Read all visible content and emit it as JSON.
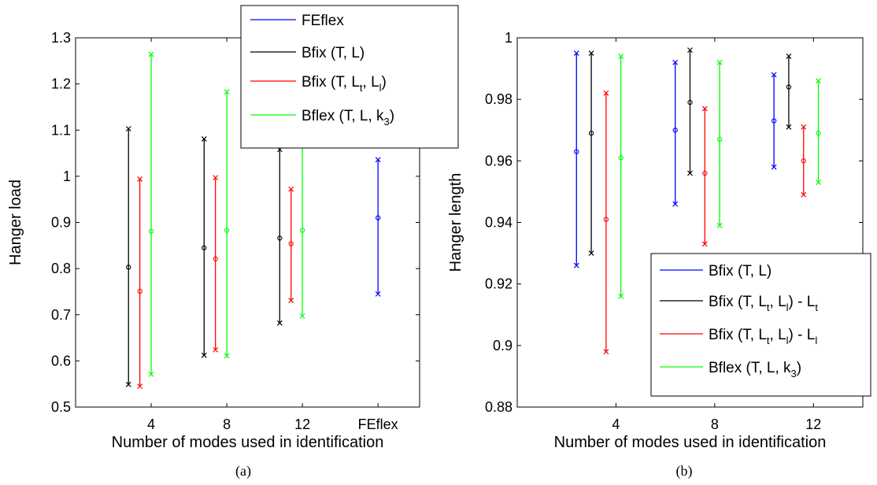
{
  "chart_data": [
    {
      "type": "scatter",
      "panel": "a",
      "caption": "(a)",
      "xlabel": "Number of modes used in identification",
      "ylabel": "Hanger load",
      "ylim": [
        0.5,
        1.3
      ],
      "y_ticks": [
        0.5,
        0.6,
        0.7,
        0.8,
        0.9,
        1,
        1.1,
        1.2,
        1.3
      ],
      "y_tick_labels": [
        "0.5",
        "0.6",
        "0.7",
        "0.8",
        "0.9",
        "1",
        "1.1",
        "1.2",
        "1.3"
      ],
      "categories": [
        "4",
        "8",
        "12",
        "FEflex"
      ],
      "grid": false,
      "legend_position": "top-right",
      "legend": [
        {
          "label": "FEflex",
          "color": "#0000ff"
        },
        {
          "label": "Bfix (T,  L)",
          "color": "#000000"
        },
        {
          "label": "Bfix (T,  L",
          "sub": "t",
          "label2": ",  L",
          "sub2": "l",
          "label3": ")",
          "color": "#ff0000"
        },
        {
          "label": "Bflex (T,  L,   k",
          "sub": "3",
          "label2": ")",
          "color": "#00ff00"
        }
      ],
      "series": [
        {
          "name": "FEflex",
          "color": "#0000ff",
          "x": [
            4.0
          ],
          "center": [
            0.91
          ],
          "low": [
            0.745
          ],
          "high": [
            1.036
          ]
        },
        {
          "name": "Bfix (T,  L)",
          "color": "#000000",
          "x": [
            0.7,
            1.7,
            2.7
          ],
          "center": [
            0.803,
            0.845,
            0.866
          ],
          "low": [
            0.549,
            0.612,
            0.682
          ],
          "high": [
            1.103,
            1.081,
            1.058
          ]
        },
        {
          "name": "Bfix (T,  Lt,  Ll)",
          "color": "#ff0000",
          "x": [
            0.85,
            1.85,
            2.85
          ],
          "center": [
            0.751,
            0.821,
            0.854
          ],
          "low": [
            0.545,
            0.624,
            0.731
          ],
          "high": [
            0.994,
            0.997,
            0.972
          ]
        },
        {
          "name": "Bflex (T,  L,   k3)",
          "color": "#00ff00",
          "x": [
            1.0,
            2.0,
            3.0
          ],
          "center": [
            0.881,
            0.883,
            0.883
          ],
          "low": [
            0.571,
            0.611,
            0.697
          ],
          "high": [
            1.264,
            1.183,
            1.077
          ]
        }
      ]
    },
    {
      "type": "scatter",
      "panel": "b",
      "caption": "(b)",
      "xlabel": "Number of modes used in identification",
      "ylabel": "Hanger length",
      "ylim": [
        0.88,
        1.0
      ],
      "y_ticks": [
        0.88,
        0.9,
        0.92,
        0.94,
        0.96,
        0.98,
        1.0
      ],
      "y_tick_labels": [
        "0.88",
        "0.9",
        "0.92",
        "0.94",
        "0.96",
        "0.98",
        "1"
      ],
      "categories": [
        "4",
        "8",
        "12"
      ],
      "grid": false,
      "legend_position": "bottom-right",
      "legend": [
        {
          "label": "Bfix (T,  L)",
          "color": "#0000ff"
        },
        {
          "label": "Bfix (T,  L",
          "sub": "t",
          "label2": ",  L",
          "sub2": "l",
          "label3": ") - L",
          "sub3": "t",
          "color": "#000000"
        },
        {
          "label": "Bfix (T,  L",
          "sub": "t",
          "label2": ",  L",
          "sub2": "l",
          "label3": ") - L",
          "sub3": "l",
          "color": "#ff0000"
        },
        {
          "label": "Bflex (T,  L,   k",
          "sub": "3",
          "label2": ")",
          "color": "#00ff00"
        }
      ],
      "series": [
        {
          "name": "Bfix (T,  L)",
          "color": "#0000ff",
          "x": [
            0.6,
            1.6,
            2.6
          ],
          "center": [
            0.963,
            0.97,
            0.973
          ],
          "low": [
            0.926,
            0.946,
            0.958
          ],
          "high": [
            0.995,
            0.992,
            0.988
          ]
        },
        {
          "name": "Bfix (T,  Lt,  Ll) - Lt",
          "color": "#000000",
          "x": [
            0.75,
            1.75,
            2.75
          ],
          "center": [
            0.969,
            0.979,
            0.984
          ],
          "low": [
            0.93,
            0.956,
            0.971
          ],
          "high": [
            0.995,
            0.996,
            0.994
          ]
        },
        {
          "name": "Bfix (T,  Lt,  Ll) - Ll",
          "color": "#ff0000",
          "x": [
            0.9,
            1.9,
            2.9
          ],
          "center": [
            0.941,
            0.956,
            0.96
          ],
          "low": [
            0.898,
            0.933,
            0.949
          ],
          "high": [
            0.982,
            0.977,
            0.971
          ]
        },
        {
          "name": "Bflex (T,  L,   k3)",
          "color": "#00ff00",
          "x": [
            1.05,
            2.05,
            3.05
          ],
          "center": [
            0.961,
            0.967,
            0.969
          ],
          "low": [
            0.916,
            0.939,
            0.953
          ],
          "high": [
            0.994,
            0.992,
            0.986
          ]
        }
      ]
    }
  ]
}
